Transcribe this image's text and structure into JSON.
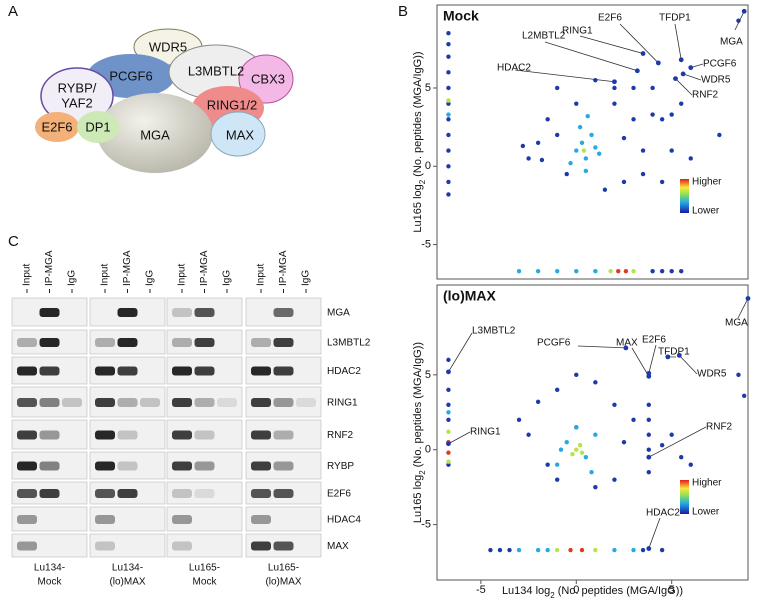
{
  "panel_labels": [
    "A",
    "B",
    "C"
  ],
  "complex": {
    "nodes": [
      {
        "label": "WDR5"
      },
      {
        "label": "PCGF6"
      },
      {
        "label": [
          "RYBP/",
          "YAF2"
        ]
      },
      {
        "label": "L3MBTL2"
      },
      {
        "label": "CBX3"
      },
      {
        "label": "RING1/2"
      },
      {
        "label": "MGA"
      },
      {
        "label": "MAX"
      },
      {
        "label": "E2F6"
      },
      {
        "label": "DP1"
      }
    ]
  },
  "chart_data": [
    {
      "type": "scatter",
      "title": "Mock",
      "ylabel": {
        "pre": "Lu165 log",
        "sub": "2",
        "post": "(No. peptides (MGA/IgG))"
      },
      "xlim": [
        -7.3,
        9.0
      ],
      "ylim": [
        -7.2,
        10.3
      ],
      "yticks": [
        -5,
        0,
        5
      ],
      "colorbar": [
        "Higher",
        "Lower"
      ],
      "series": [
        {
          "color": "#1c3aa9",
          "x": [
            -6.7,
            -6.7,
            -6.7,
            -6.7,
            -6.7,
            -6.7,
            -6.7,
            -6.7,
            -6.7,
            -6.7,
            -6.7,
            -6.7,
            -2.5,
            -2,
            -1.5,
            -1,
            -0.5,
            2,
            3,
            3.5,
            4,
            4.5,
            5,
            5.5,
            6,
            7.5,
            8.5,
            2.5,
            1.5,
            -1,
            0,
            1,
            2,
            3,
            4,
            5,
            2.5,
            3.5,
            4.5,
            -2.8,
            -1.8,
            4,
            4.5,
            5,
            5.5
          ],
          "values": [
            8.5,
            7.8,
            7,
            6,
            5,
            4,
            3,
            2,
            1,
            0,
            -1,
            -1.8,
            0.5,
            1.5,
            3,
            5,
            -0.5,
            4,
            3,
            1,
            5,
            3,
            1,
            4,
            0.5,
            2,
            9.3,
            -1,
            -1.5,
            2,
            4,
            5.5,
            5,
            5,
            3.3,
            3.3,
            1.8,
            -0.5,
            -1,
            1.3,
            0.4,
            -6.7,
            -6.7,
            -6.7,
            -6.7
          ]
        },
        {
          "color": "#27a9e1",
          "x": [
            0,
            0.3,
            0.5,
            0.8,
            1,
            0.2,
            0.6,
            1.2,
            -0.3,
            0.5,
            -6.7,
            -3,
            -2,
            -1,
            0,
            1
          ],
          "values": [
            1,
            1.5,
            0.5,
            2,
            1.2,
            2.5,
            3.2,
            0.8,
            0.2,
            -0.3,
            3.3,
            -6.7,
            -6.7,
            -6.7,
            -6.7,
            -6.7
          ]
        },
        {
          "color": "#b7e34a",
          "x": [
            1.8,
            3.0,
            -6.7,
            0.4
          ],
          "values": [
            -6.7,
            -6.7,
            4.2,
            1.0
          ]
        },
        {
          "color": "#e03a1f",
          "x": [
            2.2,
            2.6
          ],
          "values": [
            -6.7,
            -6.7
          ]
        }
      ],
      "annotations": [
        {
          "text": "MGA",
          "x": 8.8,
          "y": 9.9
        },
        {
          "text": "TFDP1",
          "x": 5.5,
          "y": 6.8
        },
        {
          "text": "E2F6",
          "x": 4.3,
          "y": 6.6
        },
        {
          "text": "RING1",
          "x": 3.5,
          "y": 7.2
        },
        {
          "text": "L2MBTL2",
          "x": 3.2,
          "y": 6.1
        },
        {
          "text": "HDAC2",
          "x": 2.0,
          "y": 5.4
        },
        {
          "text": "PCGF6",
          "x": 6.0,
          "y": 6.3
        },
        {
          "text": "WDR5",
          "x": 5.6,
          "y": 5.9
        },
        {
          "text": "RNF2",
          "x": 5.2,
          "y": 5.6
        }
      ]
    },
    {
      "type": "scatter",
      "title": "(lo)MAX",
      "ylabel": {
        "pre": "Lu165 log",
        "sub": "2",
        "post": "(No. peptides (MGA/IgG))"
      },
      "xlabel": {
        "pre": "Lu134 log",
        "sub": "2",
        "post": "(No. peptides (MGA/IgG))"
      },
      "xlim": [
        -7.3,
        9.0
      ],
      "ylim": [
        -8.7,
        11.0
      ],
      "xticks": [
        -5,
        0,
        5
      ],
      "yticks": [
        -5,
        0,
        5
      ],
      "colorbar": [
        "Higher",
        "Lower"
      ],
      "series": [
        {
          "color": "#1c3aa9",
          "x": [
            -6.7,
            -6.7,
            -6.7,
            -6.7,
            -6.7,
            -3,
            -2,
            -1,
            0,
            1,
            2,
            3,
            -2.5,
            -1.5,
            2.5,
            3.8,
            3.8,
            3.8,
            3.8,
            3.8,
            5,
            5.5,
            6,
            4.5,
            8.5,
            8.8,
            2,
            1,
            -1,
            0,
            -4.5,
            -4,
            -3.5,
            3.5,
            4.5
          ],
          "values": [
            6,
            4,
            3,
            2,
            -1,
            2,
            3.2,
            4,
            5,
            4.5,
            3,
            2,
            1,
            -1,
            0.5,
            3,
            2,
            1,
            0,
            -1.5,
            1,
            -0.5,
            -1,
            0.3,
            5,
            3.6,
            -2,
            -2.5,
            -2,
            1.5,
            -6.7,
            -6.7,
            -6.7,
            -6.7,
            -6.7
          ]
        },
        {
          "color": "#27a9e1",
          "x": [
            -0.5,
            0.5,
            0,
            -1,
            1,
            -0.8,
            0.8,
            -3,
            -2,
            -1.5,
            2,
            3,
            -6.7
          ],
          "values": [
            0.5,
            -0.5,
            1.5,
            -1,
            1,
            0,
            -1.5,
            -6.7,
            -6.7,
            -6.7,
            -6.7,
            -6.7,
            2.5
          ]
        },
        {
          "color": "#b7e34a",
          "x": [
            0,
            0.2,
            -0.2,
            0.3,
            -6.7,
            -6.7,
            -1,
            1
          ],
          "values": [
            0,
            0.3,
            -0.3,
            -0.2,
            1.2,
            -0.8,
            -6.7,
            -6.7
          ]
        },
        {
          "color": "#e03a1f",
          "x": [
            -6.7,
            -6.7,
            -0.3,
            0.3
          ],
          "values": [
            0.5,
            -0.2,
            -6.7,
            -6.7
          ]
        }
      ],
      "annotations": [
        {
          "text": "L3MBTL2",
          "x": -6.7,
          "y": 5.2
        },
        {
          "text": "RING1",
          "x": -6.7,
          "y": 0.4
        },
        {
          "text": "PCGF6",
          "x": 2.6,
          "y": 6.8
        },
        {
          "text": "MAX",
          "x": 3.8,
          "y": 4.9
        },
        {
          "text": "E2F6",
          "x": 3.8,
          "y": 5.1
        },
        {
          "text": "TFDP1",
          "x": 4.8,
          "y": 6.2
        },
        {
          "text": "WDR5",
          "x": 5.4,
          "y": 6.3
        },
        {
          "text": "MGA",
          "x": 9.0,
          "y": 10.1
        },
        {
          "text": "RNF2",
          "x": 3.8,
          "y": -0.5
        },
        {
          "text": "HDAC2",
          "x": 3.8,
          "y": -6.6
        }
      ]
    }
  ],
  "blot": {
    "lanes": [
      "Input",
      "IP-MGA",
      "IgG"
    ],
    "proteins": [
      "MGA",
      "L3MBTL2",
      "HDAC2",
      "RING1",
      "RNF2",
      "RYBP",
      "E2F6",
      "HDAC4",
      "MAX"
    ],
    "samples": [
      [
        "Lu134-",
        "Mock"
      ],
      [
        "Lu134-",
        "(lo)MAX"
      ],
      [
        "Lu165-",
        "Mock"
      ],
      [
        "Lu165-",
        "(lo)MAX"
      ]
    ],
    "bands": [
      [
        [
          0,
          0.9,
          0
        ],
        [
          0,
          0.9,
          0
        ],
        [
          0.2,
          0.7,
          0
        ],
        [
          0,
          0.6,
          0
        ]
      ],
      [
        [
          0.3,
          0.9,
          0
        ],
        [
          0.3,
          0.9,
          0
        ],
        [
          0.3,
          0.8,
          0
        ],
        [
          0.3,
          0.8,
          0
        ]
      ],
      [
        [
          0.9,
          0.8,
          0
        ],
        [
          0.9,
          0.8,
          0
        ],
        [
          0.9,
          0.8,
          0
        ],
        [
          0.9,
          0.8,
          0
        ]
      ],
      [
        [
          0.7,
          0.5,
          0.2
        ],
        [
          0.8,
          0.3,
          0.2
        ],
        [
          0.8,
          0.3,
          0.1
        ],
        [
          0.8,
          0.4,
          0.1
        ]
      ],
      [
        [
          0.8,
          0.4,
          0
        ],
        [
          0.9,
          0.2,
          0
        ],
        [
          0.8,
          0.2,
          0
        ],
        [
          0.8,
          0.3,
          0
        ]
      ],
      [
        [
          0.9,
          0.5,
          0
        ],
        [
          0.9,
          0.2,
          0
        ],
        [
          0.8,
          0.4,
          0
        ],
        [
          0.8,
          0.4,
          0
        ]
      ],
      [
        [
          0.7,
          0.8,
          0
        ],
        [
          0.7,
          0.8,
          0
        ],
        [
          0.2,
          0.1,
          0
        ],
        [
          0.7,
          0.7,
          0
        ]
      ],
      [
        [
          0.4,
          0,
          0
        ],
        [
          0.4,
          0,
          0
        ],
        [
          0.4,
          0,
          0
        ],
        [
          0.4,
          0,
          0
        ]
      ],
      [
        [
          0.4,
          0,
          0
        ],
        [
          0.2,
          0,
          0
        ],
        [
          0.2,
          0,
          0
        ],
        [
          0.8,
          0.7,
          0
        ]
      ]
    ]
  }
}
